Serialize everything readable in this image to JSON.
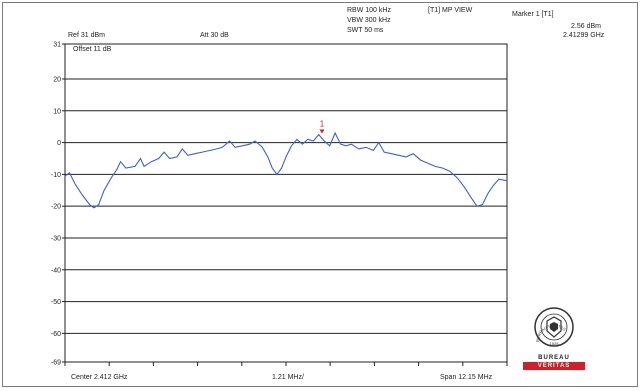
{
  "header": {
    "rbw": "RBW 100 kHz",
    "vbw": "VBW 300 kHz",
    "swt": "SWT 50 ms",
    "view": "[T1] MP VIEW",
    "ref": "Ref 31 dBm",
    "att": "Att  30 dB",
    "offset": "Offset 11 dB"
  },
  "marker": {
    "title": "Marker 1 [T1]",
    "level": "2.56 dBm",
    "freq": "2.41299 GHz",
    "label": "1"
  },
  "footer": {
    "center": "Center 2.412 GHz",
    "div": "1.21 MHz/",
    "span": "Span 12.15 MHz"
  },
  "logo": {
    "top_text": "BUREAU",
    "bottom_text": "VERITAS",
    "ring_text": "BUREAU VERITAS",
    "year": "1828"
  },
  "colors": {
    "trace": "#3b63c9",
    "marker": "#d11f2a",
    "grid": "#222222"
  },
  "chart_data": {
    "type": "line",
    "title": "",
    "xlabel": "",
    "ylabel": "",
    "xlim": [
      2405.925,
      2418.075
    ],
    "ylim": [
      -69,
      31
    ],
    "yticks": [
      31,
      20,
      10,
      0,
      -10,
      -20,
      -30,
      -40,
      -50,
      -60,
      -69
    ],
    "ytick_labels": [
      "31",
      "20",
      "10",
      "0",
      "-10",
      "-20",
      "-30",
      "-40",
      "-50",
      "-60",
      "-69"
    ],
    "x_divisions": 10,
    "grid": "horizontal",
    "marker": {
      "x": 2412.99,
      "y": 2.56
    },
    "series": [
      {
        "points": [
          [
            2405.925,
            -10.5
          ],
          [
            2406.05,
            -9.5
          ],
          [
            2406.2,
            -13
          ],
          [
            2406.4,
            -16.5
          ],
          [
            2406.6,
            -19.5
          ],
          [
            2406.72,
            -20.5
          ],
          [
            2406.85,
            -19.5
          ],
          [
            2407.0,
            -15
          ],
          [
            2407.2,
            -11
          ],
          [
            2407.35,
            -8.5
          ],
          [
            2407.45,
            -6
          ],
          [
            2407.6,
            -8
          ],
          [
            2407.85,
            -7.5
          ],
          [
            2408.0,
            -5
          ],
          [
            2408.1,
            -7.5
          ],
          [
            2408.3,
            -6
          ],
          [
            2408.5,
            -5
          ],
          [
            2408.65,
            -3
          ],
          [
            2408.8,
            -5
          ],
          [
            2409.0,
            -4.5
          ],
          [
            2409.15,
            -2
          ],
          [
            2409.3,
            -4
          ],
          [
            2409.5,
            -3.5
          ],
          [
            2409.7,
            -3
          ],
          [
            2409.9,
            -2.5
          ],
          [
            2410.1,
            -2
          ],
          [
            2410.25,
            -1.5
          ],
          [
            2410.45,
            0.5
          ],
          [
            2410.6,
            -1.5
          ],
          [
            2410.8,
            -1
          ],
          [
            2411.0,
            -0.5
          ],
          [
            2411.15,
            0.5
          ],
          [
            2411.35,
            -1.5
          ],
          [
            2411.5,
            -4.5
          ],
          [
            2411.62,
            -8
          ],
          [
            2411.75,
            -10
          ],
          [
            2411.88,
            -8
          ],
          [
            2412.0,
            -4.5
          ],
          [
            2412.15,
            -1
          ],
          [
            2412.3,
            1
          ],
          [
            2412.45,
            -0.5
          ],
          [
            2412.6,
            1
          ],
          [
            2412.75,
            0.5
          ],
          [
            2412.9,
            2.5
          ],
          [
            2413.05,
            0.5
          ],
          [
            2413.2,
            -1
          ],
          [
            2413.35,
            3
          ],
          [
            2413.5,
            -0.5
          ],
          [
            2413.65,
            -1
          ],
          [
            2413.8,
            -0.5
          ],
          [
            2414.0,
            -2
          ],
          [
            2414.2,
            -1.5
          ],
          [
            2414.4,
            -2.5
          ],
          [
            2414.55,
            0
          ],
          [
            2414.7,
            -3
          ],
          [
            2414.9,
            -3.5
          ],
          [
            2415.1,
            -4
          ],
          [
            2415.3,
            -4.5
          ],
          [
            2415.5,
            -3.5
          ],
          [
            2415.7,
            -5.5
          ],
          [
            2415.9,
            -6.5
          ],
          [
            2416.1,
            -7.5
          ],
          [
            2416.3,
            -8
          ],
          [
            2416.5,
            -9
          ],
          [
            2416.7,
            -11
          ],
          [
            2416.9,
            -14
          ],
          [
            2417.1,
            -17.5
          ],
          [
            2417.25,
            -20
          ],
          [
            2417.4,
            -19.5
          ],
          [
            2417.55,
            -16
          ],
          [
            2417.7,
            -13.5
          ],
          [
            2417.85,
            -11.5
          ],
          [
            2418.075,
            -12
          ]
        ]
      }
    ]
  }
}
